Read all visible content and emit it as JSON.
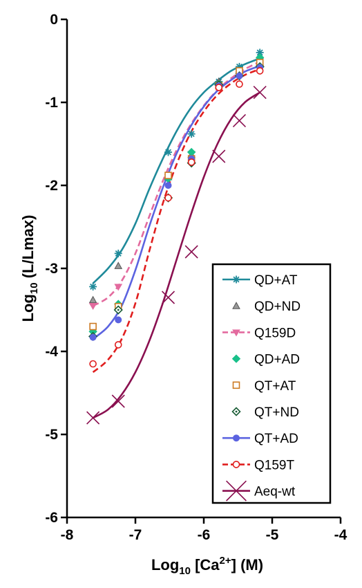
{
  "chart_data": {
    "type": "scatter",
    "xlabel": {
      "main": "Log",
      "sub": "10",
      "mid": " [Ca",
      "sup": "2+",
      "end": "]  (M)"
    },
    "ylabel": {
      "main": "Log",
      "sub": "10",
      "rest": " (L/Lmax)"
    },
    "xlim": [
      -8,
      -4
    ],
    "ylim": [
      -6,
      0
    ],
    "x_ticks": [
      "-8",
      "-7",
      "-6",
      "-5",
      "-4"
    ],
    "y_ticks": [
      "0",
      "-1",
      "-2",
      "-3",
      "-4",
      "-5",
      "-6"
    ],
    "grid": false,
    "legend_position": "bottom-right",
    "series": [
      {
        "name": "QD+AT",
        "color": "#1f8a9a",
        "marker": "asterisk",
        "dash": "solid",
        "x": [
          -7.62,
          -7.25,
          -6.52,
          -6.18,
          -5.78,
          -5.48,
          -5.18
        ],
        "y": [
          -3.22,
          -2.82,
          -1.6,
          -1.38,
          -0.75,
          -0.57,
          -0.4
        ],
        "fit": [
          [
            -7.62,
            -3.18
          ],
          [
            -7.4,
            -3.0
          ],
          [
            -7.2,
            -2.78
          ],
          [
            -7.0,
            -2.46
          ],
          [
            -6.8,
            -2.05
          ],
          [
            -6.6,
            -1.68
          ],
          [
            -6.4,
            -1.35
          ],
          [
            -6.2,
            -1.08
          ],
          [
            -6.0,
            -0.88
          ],
          [
            -5.8,
            -0.74
          ],
          [
            -5.6,
            -0.62
          ],
          [
            -5.4,
            -0.54
          ],
          [
            -5.18,
            -0.47
          ]
        ]
      },
      {
        "name": "QD+ND",
        "color": "#555555",
        "marker": "triangle",
        "dash": "none",
        "x": [
          -7.62,
          -7.25,
          -6.52,
          -6.18,
          -5.78,
          -5.48,
          -5.18
        ],
        "y": [
          -3.38,
          -2.97,
          -1.9,
          -1.63,
          -0.75,
          -0.62,
          -0.52
        ]
      },
      {
        "name": "Q159D",
        "color": "#e36a9e",
        "marker": "triangle-down",
        "dash": "dashed",
        "x": [
          -7.62,
          -7.25,
          -6.52,
          -6.18,
          -5.78,
          -5.48,
          -5.18
        ],
        "y": [
          -3.45,
          -3.22,
          -1.9,
          -1.62,
          -0.82,
          -0.66,
          -0.5
        ],
        "fit": [
          [
            -7.62,
            -3.45
          ],
          [
            -7.4,
            -3.35
          ],
          [
            -7.2,
            -3.15
          ],
          [
            -7.0,
            -2.82
          ],
          [
            -6.8,
            -2.38
          ],
          [
            -6.6,
            -1.95
          ],
          [
            -6.4,
            -1.58
          ],
          [
            -6.2,
            -1.28
          ],
          [
            -6.0,
            -1.04
          ],
          [
            -5.8,
            -0.85
          ],
          [
            -5.6,
            -0.71
          ],
          [
            -5.4,
            -0.6
          ],
          [
            -5.18,
            -0.51
          ]
        ]
      },
      {
        "name": "QD+AD",
        "color": "#19c08a",
        "marker": "diamond",
        "dash": "none",
        "x": [
          -7.62,
          -7.25,
          -6.52,
          -6.18,
          -5.78,
          -5.48,
          -5.18
        ],
        "y": [
          -3.76,
          -3.43,
          -1.92,
          -1.6,
          -0.78,
          -0.65,
          -0.46
        ]
      },
      {
        "name": "QT+AT",
        "color": "#cc7a22",
        "marker": "square",
        "dash": "none",
        "x": [
          -7.62,
          -7.25,
          -6.52,
          -6.18,
          -5.78,
          -5.48,
          -5.18
        ],
        "y": [
          -3.7,
          -3.46,
          -1.88,
          -1.68,
          -0.8,
          -0.62,
          -0.52
        ]
      },
      {
        "name": "QT+ND",
        "color": "#1a5c36",
        "marker": "diamond-open",
        "dash": "none",
        "x": [
          -7.62,
          -7.25,
          -6.52,
          -6.18,
          -5.78,
          -5.48,
          -5.18
        ],
        "y": [
          -3.82,
          -3.5,
          -2.15,
          -1.73,
          -0.79,
          -0.68,
          -0.57
        ]
      },
      {
        "name": "QT+AD",
        "color": "#5b63e0",
        "marker": "circle-filled",
        "dash": "solid",
        "x": [
          -7.62,
          -7.25,
          -6.52,
          -6.18,
          -5.78,
          -5.48,
          -5.18
        ],
        "y": [
          -3.83,
          -3.62,
          -2.0,
          -1.68,
          -0.8,
          -0.68,
          -0.58
        ],
        "fit": [
          [
            -7.62,
            -3.85
          ],
          [
            -7.4,
            -3.7
          ],
          [
            -7.2,
            -3.45
          ],
          [
            -7.0,
            -3.02
          ],
          [
            -6.8,
            -2.5
          ],
          [
            -6.6,
            -2.03
          ],
          [
            -6.4,
            -1.62
          ],
          [
            -6.2,
            -1.3
          ],
          [
            -6.0,
            -1.05
          ],
          [
            -5.8,
            -0.86
          ],
          [
            -5.6,
            -0.73
          ],
          [
            -5.4,
            -0.63
          ],
          [
            -5.18,
            -0.56
          ]
        ]
      },
      {
        "name": "Q159T",
        "color": "#e01e1e",
        "marker": "circle-open",
        "dash": "dashed",
        "x": [
          -7.62,
          -7.25,
          -6.52,
          -6.18,
          -5.78,
          -5.48,
          -5.18
        ],
        "y": [
          -4.15,
          -3.92,
          -2.15,
          -1.72,
          -0.82,
          -0.78,
          -0.62
        ],
        "fit": [
          [
            -7.62,
            -4.25
          ],
          [
            -7.4,
            -4.1
          ],
          [
            -7.2,
            -3.85
          ],
          [
            -7.0,
            -3.42
          ],
          [
            -6.8,
            -2.8
          ],
          [
            -6.6,
            -2.22
          ],
          [
            -6.4,
            -1.75
          ],
          [
            -6.2,
            -1.38
          ],
          [
            -6.0,
            -1.11
          ],
          [
            -5.8,
            -0.91
          ],
          [
            -5.6,
            -0.77
          ],
          [
            -5.4,
            -0.67
          ],
          [
            -5.18,
            -0.6
          ]
        ]
      },
      {
        "name": "Aeq-wt",
        "color": "#8a1050",
        "marker": "x",
        "dash": "solid",
        "x": [
          -7.62,
          -7.25,
          -6.52,
          -6.18,
          -5.78,
          -5.48,
          -5.18
        ],
        "y": [
          -4.8,
          -4.6,
          -3.35,
          -2.8,
          -1.65,
          -1.22,
          -0.88
        ],
        "fit": [
          [
            -7.62,
            -4.8
          ],
          [
            -7.4,
            -4.7
          ],
          [
            -7.2,
            -4.52
          ],
          [
            -7.0,
            -4.25
          ],
          [
            -6.8,
            -3.88
          ],
          [
            -6.6,
            -3.42
          ],
          [
            -6.4,
            -2.9
          ],
          [
            -6.2,
            -2.38
          ],
          [
            -6.0,
            -1.9
          ],
          [
            -5.8,
            -1.5
          ],
          [
            -5.6,
            -1.2
          ],
          [
            -5.4,
            -1.0
          ],
          [
            -5.18,
            -0.88
          ]
        ]
      }
    ]
  }
}
